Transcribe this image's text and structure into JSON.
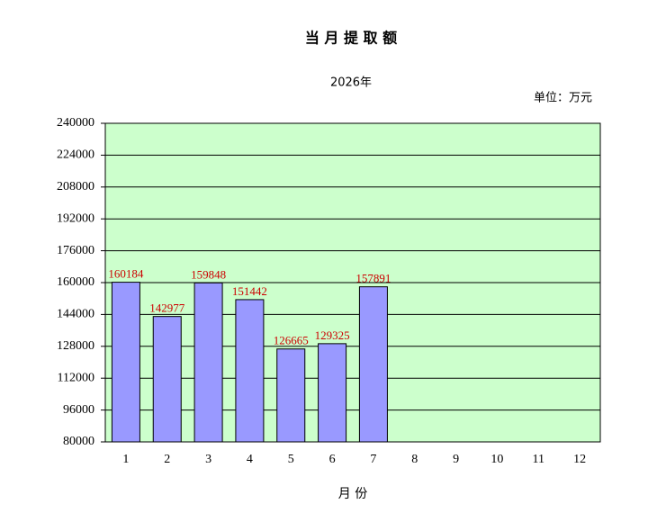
{
  "chart_data": {
    "type": "bar",
    "title": "当 月 提 取 额",
    "subtitle": "2026年",
    "unit_label": "单位：万元",
    "x_label": "月 份",
    "categories": [
      "1",
      "2",
      "3",
      "4",
      "5",
      "6",
      "7",
      "8",
      "9",
      "10",
      "11",
      "12"
    ],
    "values": [
      160184,
      142977,
      159848,
      151442,
      126665,
      129325,
      157891,
      null,
      null,
      null,
      null,
      null
    ],
    "color": "#9999ff",
    "label_color": "#cc0000",
    "plot_background": "#ccffcc",
    "ylim": [
      80000,
      240000
    ],
    "yticks": [
      80000,
      96000,
      112000,
      128000,
      144000,
      160000,
      176000,
      192000,
      208000,
      224000,
      240000
    ],
    "grid": true
  }
}
